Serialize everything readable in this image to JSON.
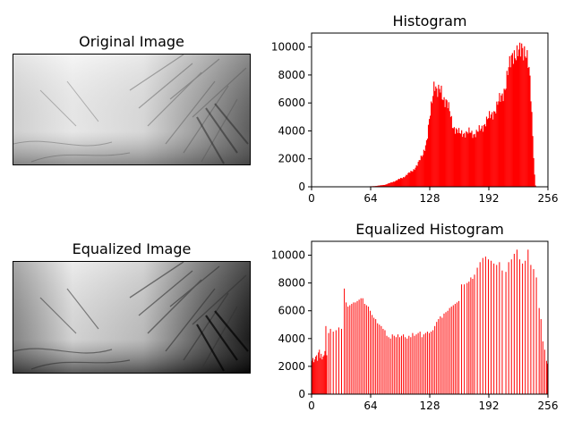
{
  "panels": {
    "original_title": "Original Image",
    "equalized_title": "Equalized Image",
    "histogram_title": "Histogram",
    "equalized_histogram_title": "Equalized Histogram"
  },
  "colors": {
    "bars": "#ff0000",
    "axes": "#000000",
    "background": "#ffffff"
  },
  "chart_data": [
    {
      "type": "bar",
      "title": "Histogram",
      "xlabel": "",
      "ylabel": "",
      "xlim": [
        0,
        256
      ],
      "ylim": [
        0,
        11000
      ],
      "xticks": [
        0,
        64,
        128,
        192,
        256
      ],
      "yticks": [
        0,
        2000,
        4000,
        6000,
        8000,
        10000
      ],
      "grid": false,
      "profile": {
        "x": [
          0,
          40,
          41,
          60,
          70,
          80,
          90,
          100,
          110,
          115,
          120,
          125,
          130,
          133,
          136,
          140,
          143,
          146,
          150,
          153,
          156,
          160,
          164,
          168,
          172,
          176,
          180,
          184,
          188,
          192,
          196,
          200,
          205,
          210,
          215,
          218,
          222,
          225,
          228,
          232,
          236,
          238,
          240,
          241,
          242,
          243,
          256
        ],
        "y": [
          0,
          0,
          5,
          20,
          60,
          150,
          400,
          700,
          1200,
          1600,
          2300,
          3300,
          6000,
          7700,
          6600,
          6900,
          6400,
          6100,
          5200,
          4400,
          4100,
          3800,
          3900,
          3800,
          3900,
          3800,
          3900,
          4200,
          4600,
          4900,
          5300,
          5600,
          6400,
          7200,
          8800,
          9800,
          9300,
          9500,
          10200,
          9600,
          8000,
          6000,
          3000,
          1500,
          200,
          0,
          0
        ]
      }
    },
    {
      "type": "bar",
      "title": "Equalized Histogram",
      "xlabel": "",
      "ylabel": "",
      "xlim": [
        0,
        256
      ],
      "ylim": [
        0,
        11000
      ],
      "xticks": [
        0,
        64,
        128,
        192,
        256
      ],
      "yticks": [
        0,
        2000,
        4000,
        6000,
        8000,
        10000
      ],
      "grid": false,
      "bars": {
        "x": [
          0,
          1,
          2,
          3,
          4,
          5,
          6,
          7,
          8,
          9,
          10,
          11,
          12,
          13,
          14,
          15,
          16,
          18,
          20,
          23,
          26,
          29,
          32,
          35,
          37,
          39,
          41,
          43,
          45,
          47,
          49,
          51,
          53,
          55,
          57,
          59,
          61,
          63,
          65,
          67,
          69,
          71,
          73,
          75,
          77,
          79,
          81,
          83,
          85,
          87,
          89,
          91,
          93,
          95,
          97,
          99,
          101,
          103,
          105,
          107,
          109,
          111,
          113,
          115,
          117,
          119,
          121,
          123,
          125,
          127,
          129,
          131,
          133,
          135,
          137,
          139,
          141,
          143,
          145,
          147,
          149,
          151,
          153,
          155,
          157,
          159,
          162,
          165,
          168,
          170,
          172,
          174,
          176,
          179,
          182,
          185,
          188,
          191,
          194,
          197,
          200,
          203,
          206,
          210,
          213,
          216,
          219,
          222,
          225,
          228,
          231,
          234,
          237,
          240,
          243,
          246,
          248,
          250,
          252,
          254,
          255
        ],
        "y": [
          2400,
          2600,
          2300,
          2500,
          2700,
          2800,
          2400,
          3000,
          3200,
          2600,
          2900,
          2500,
          2700,
          2800,
          3100,
          4900,
          2800,
          4400,
          4700,
          4500,
          4600,
          4800,
          4700,
          7600,
          6600,
          6300,
          6400,
          6500,
          6600,
          6600,
          6700,
          6800,
          6900,
          6900,
          6500,
          6400,
          6300,
          6000,
          5700,
          5500,
          5400,
          5100,
          5000,
          4900,
          4700,
          4600,
          4200,
          4100,
          4000,
          4300,
          4200,
          4100,
          4300,
          4100,
          4200,
          4300,
          4100,
          4000,
          4200,
          4100,
          4400,
          4200,
          4300,
          4400,
          4500,
          4100,
          4300,
          4400,
          4500,
          4400,
          4500,
          4600,
          4900,
          5200,
          5400,
          5600,
          5500,
          5800,
          5900,
          6000,
          6200,
          6300,
          6400,
          6500,
          6600,
          6700,
          7900,
          7900,
          8000,
          8100,
          8400,
          8300,
          8600,
          9100,
          9500,
          9800,
          9900,
          9700,
          9600,
          9400,
          9300,
          9500,
          8900,
          8800,
          9500,
          9700,
          10100,
          10400,
          9700,
          9400,
          9600,
          10400,
          9300,
          9000,
          8400,
          6200,
          5400,
          3800,
          3200,
          2400,
          2200
        ]
      }
    }
  ]
}
